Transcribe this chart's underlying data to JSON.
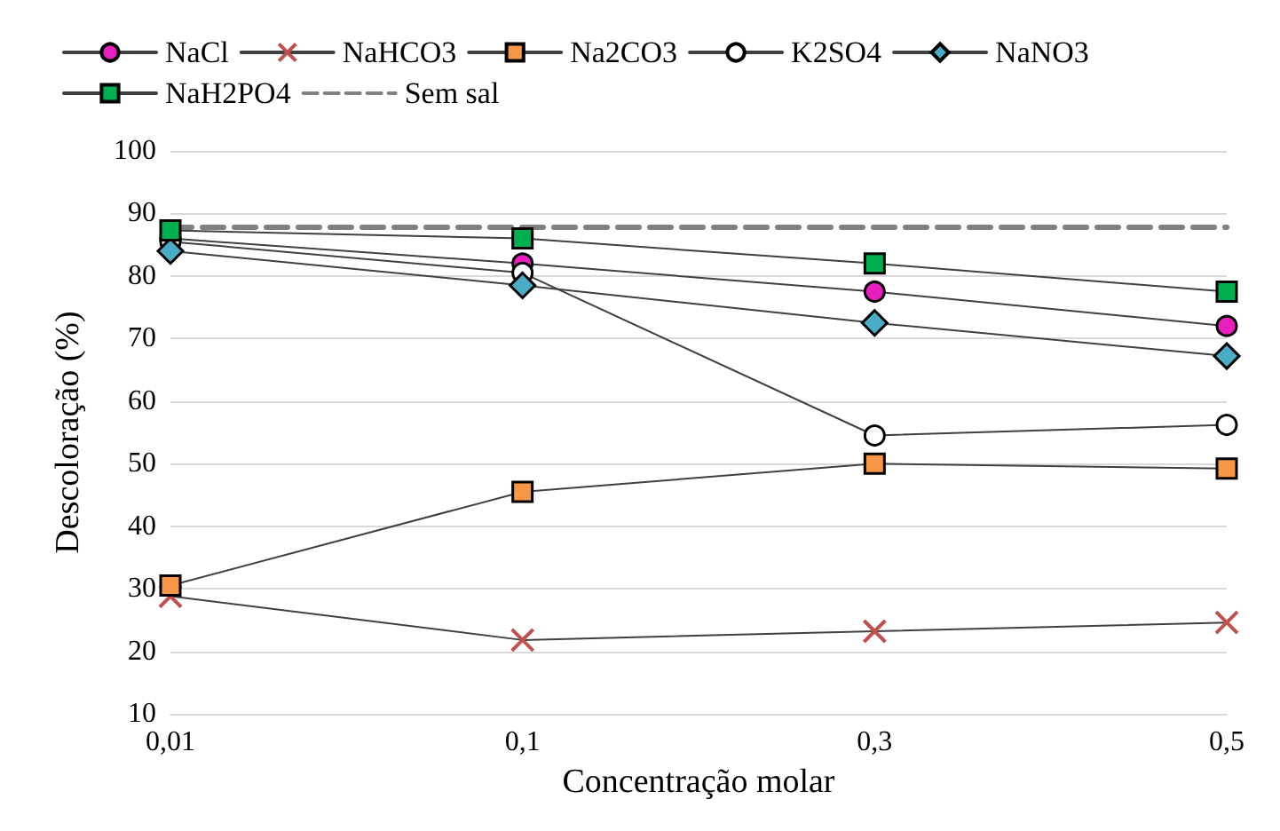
{
  "chart_data": {
    "type": "line",
    "categories": [
      "0,01",
      "0,1",
      "0,3",
      "0,5"
    ],
    "xlabel": "Concentração molar",
    "ylabel": "Descoloração (%)",
    "ylim": [
      10,
      100
    ],
    "yticks": [
      10,
      20,
      30,
      40,
      50,
      60,
      70,
      80,
      90,
      100
    ],
    "grid": "y",
    "legend": "top",
    "series": [
      {
        "name": "NaCl",
        "color": "#e81fbe",
        "marker": "circle",
        "values": [
          86,
          82,
          77.5,
          72
        ]
      },
      {
        "name": "NaHCO3",
        "color": "#c0504d",
        "marker": "cross",
        "values": [
          28.8,
          21.8,
          23.2,
          24.6
        ]
      },
      {
        "name": "Na2CO3",
        "color": "#f79646",
        "marker": "square",
        "values": [
          30.5,
          45.5,
          50,
          49.2
        ]
      },
      {
        "name": "K2SO4",
        "color": "#ffffff",
        "marker": "circle",
        "values": [
          85.5,
          80.5,
          54.5,
          56.2
        ]
      },
      {
        "name": "NaNO3",
        "color": "#4bacc6",
        "marker": "diamond",
        "values": [
          84,
          78.5,
          72.5,
          67.2
        ]
      },
      {
        "name": "NaH2PO4",
        "color": "#00b050",
        "marker": "square",
        "values": [
          87.3,
          86,
          82,
          77.5
        ]
      },
      {
        "name": "Sem sal",
        "color": "#808080",
        "marker": "none",
        "line_style": "dashed",
        "values": [
          87.8,
          87.8,
          87.8,
          87.8
        ]
      }
    ]
  }
}
